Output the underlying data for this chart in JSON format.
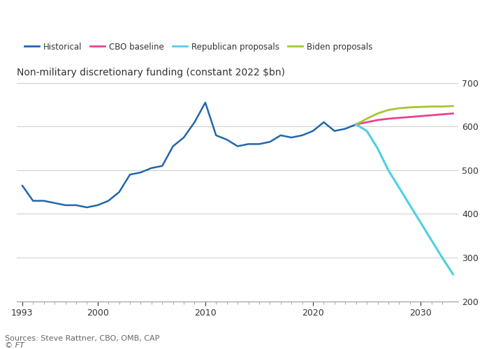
{
  "title": "Non-military discretionary funding (constant 2022 $bn)",
  "sources": "Sources: Steve Rattner, CBO, OMB, CAP",
  "watermark": "© FT",
  "ylim": [
    200,
    700
  ],
  "yticks": [
    200,
    300,
    400,
    500,
    600,
    700
  ],
  "xlim_start": 1992.5,
  "xlim_end": 2033.5,
  "xtick_labels": [
    "1993",
    "2000",
    "2010",
    "2020",
    "2030"
  ],
  "xtick_positions": [
    1993,
    2000,
    2010,
    2020,
    2030
  ],
  "historical": {
    "years": [
      1993,
      1994,
      1995,
      1996,
      1997,
      1998,
      1999,
      2000,
      2001,
      2002,
      2003,
      2004,
      2005,
      2006,
      2007,
      2008,
      2009,
      2010,
      2011,
      2012,
      2013,
      2014,
      2015,
      2016,
      2017,
      2018,
      2019,
      2020,
      2021,
      2022,
      2023,
      2024
    ],
    "values": [
      465,
      430,
      430,
      425,
      420,
      420,
      415,
      420,
      430,
      450,
      490,
      495,
      505,
      510,
      555,
      575,
      610,
      655,
      580,
      570,
      555,
      560,
      560,
      565,
      580,
      575,
      580,
      590,
      610,
      590,
      595,
      605
    ],
    "color": "#2166ac",
    "linewidth": 1.8,
    "label": "Historical"
  },
  "cbo_baseline": {
    "years": [
      2024,
      2025,
      2026,
      2027,
      2028,
      2029,
      2030,
      2031,
      2032,
      2033
    ],
    "values": [
      605,
      610,
      615,
      618,
      620,
      622,
      624,
      626,
      628,
      630
    ],
    "color": "#e84393",
    "linewidth": 2.0,
    "label": "CBO baseline"
  },
  "republican": {
    "years": [
      2024,
      2025,
      2026,
      2027,
      2028,
      2029,
      2030,
      2031,
      2032,
      2033
    ],
    "values": [
      605,
      590,
      550,
      500,
      460,
      420,
      380,
      340,
      300,
      262
    ],
    "color": "#4dd0e1",
    "linewidth": 2.2,
    "label": "Republican proposals"
  },
  "biden": {
    "years": [
      2024,
      2025,
      2026,
      2027,
      2028,
      2029,
      2030,
      2031,
      2032,
      2033
    ],
    "values": [
      605,
      618,
      630,
      638,
      642,
      644,
      645,
      646,
      646,
      647
    ],
    "color": "#a4c639",
    "linewidth": 2.0,
    "label": "Biden proposals"
  },
  "bg_color": "#ffffff",
  "text_color": "#333333",
  "grid_color": "#cccccc",
  "title_color": "#333333",
  "source_color": "#666666"
}
